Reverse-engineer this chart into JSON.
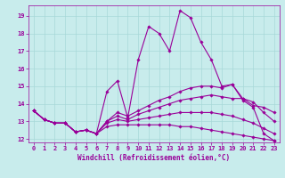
{
  "title": "",
  "xlabel": "Windchill (Refroidissement éolien,°C)",
  "ylabel": "",
  "bg_color": "#c8ecec",
  "grid_color": "#a8d8d8",
  "line_color": "#990099",
  "xlim": [
    -0.5,
    23.5
  ],
  "ylim": [
    11.8,
    19.6
  ],
  "yticks": [
    12,
    13,
    14,
    15,
    16,
    17,
    18,
    19
  ],
  "xticks": [
    0,
    1,
    2,
    3,
    4,
    5,
    6,
    7,
    8,
    9,
    10,
    11,
    12,
    13,
    14,
    15,
    16,
    17,
    18,
    19,
    20,
    21,
    22,
    23
  ],
  "lines": [
    {
      "x": [
        0,
        1,
        2,
        3,
        4,
        5,
        6,
        7,
        8,
        9,
        10,
        11,
        12,
        13,
        14,
        15,
        16,
        17,
        18,
        19,
        20,
        21,
        22,
        23
      ],
      "y": [
        13.6,
        13.1,
        12.9,
        12.9,
        12.4,
        12.5,
        12.3,
        14.7,
        15.3,
        13.2,
        16.5,
        18.4,
        18.0,
        17.0,
        19.3,
        18.9,
        17.5,
        16.5,
        15.0,
        15.1,
        14.2,
        13.8,
        12.3,
        11.9
      ]
    },
    {
      "x": [
        0,
        1,
        2,
        3,
        4,
        5,
        6,
        7,
        8,
        9,
        10,
        11,
        12,
        13,
        14,
        15,
        16,
        17,
        18,
        19,
        20,
        21,
        22,
        23
      ],
      "y": [
        13.6,
        13.1,
        12.9,
        12.9,
        12.4,
        12.5,
        12.3,
        13.0,
        13.5,
        13.3,
        13.6,
        13.9,
        14.2,
        14.4,
        14.7,
        14.9,
        15.0,
        15.0,
        14.9,
        15.1,
        14.3,
        13.9,
        13.8,
        13.5
      ]
    },
    {
      "x": [
        0,
        1,
        2,
        3,
        4,
        5,
        6,
        7,
        8,
        9,
        10,
        11,
        12,
        13,
        14,
        15,
        16,
        17,
        18,
        19,
        20,
        21,
        22,
        23
      ],
      "y": [
        13.6,
        13.1,
        12.9,
        12.9,
        12.4,
        12.5,
        12.3,
        13.0,
        13.3,
        13.1,
        13.4,
        13.6,
        13.8,
        14.0,
        14.2,
        14.3,
        14.4,
        14.5,
        14.4,
        14.3,
        14.3,
        14.1,
        13.5,
        13.0
      ]
    },
    {
      "x": [
        0,
        1,
        2,
        3,
        4,
        5,
        6,
        7,
        8,
        9,
        10,
        11,
        12,
        13,
        14,
        15,
        16,
        17,
        18,
        19,
        20,
        21,
        22,
        23
      ],
      "y": [
        13.6,
        13.1,
        12.9,
        12.9,
        12.4,
        12.5,
        12.3,
        12.9,
        13.1,
        13.0,
        13.1,
        13.2,
        13.3,
        13.4,
        13.5,
        13.5,
        13.5,
        13.5,
        13.4,
        13.3,
        13.1,
        12.9,
        12.6,
        12.3
      ]
    },
    {
      "x": [
        0,
        1,
        2,
        3,
        4,
        5,
        6,
        7,
        8,
        9,
        10,
        11,
        12,
        13,
        14,
        15,
        16,
        17,
        18,
        19,
        20,
        21,
        22,
        23
      ],
      "y": [
        13.6,
        13.1,
        12.9,
        12.9,
        12.4,
        12.5,
        12.3,
        12.7,
        12.8,
        12.8,
        12.8,
        12.8,
        12.8,
        12.8,
        12.7,
        12.7,
        12.6,
        12.5,
        12.4,
        12.3,
        12.2,
        12.1,
        12.0,
        11.9
      ]
    }
  ]
}
